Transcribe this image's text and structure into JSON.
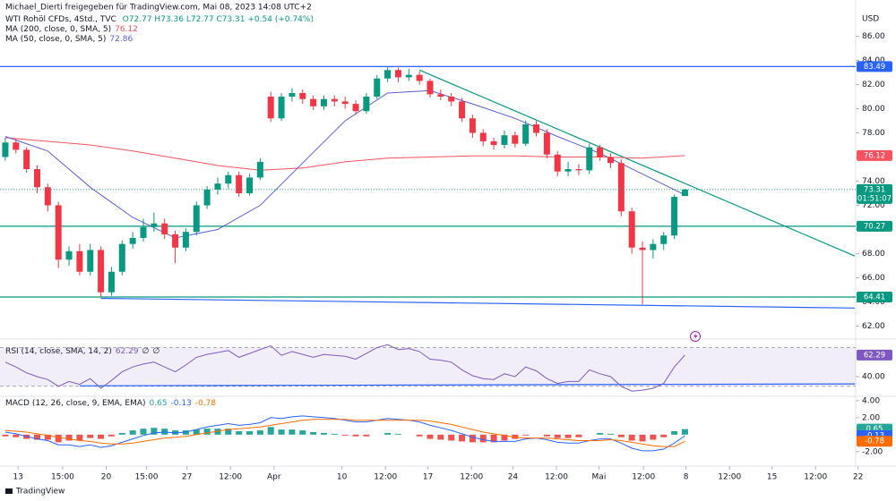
{
  "chart_data": [
    {
      "type": "candlestick",
      "shared_by": "Michael_Dierti freigegeben für TradingView.com, Mai 08, 2023 14:08 UTC+2",
      "title": "WTI Rohöl CFDs, 4Std., TVC",
      "ohlc_label": "O72.77 H73.36 L72.77 C73.31 +0.54 (+0.74%)",
      "currency": "USD",
      "countdown": "01:51:07",
      "brand": "TradingView",
      "up_color": "#089981",
      "down_color": "#f23645",
      "open": [
        76.0,
        77.2,
        76.6,
        75.0,
        73.5,
        72.0,
        67.5,
        68.2,
        66.5,
        68.3,
        64.8,
        66.5,
        68.8,
        69.3,
        70.2,
        70.5,
        69.6,
        68.5,
        69.8,
        72.0,
        73.3,
        73.8,
        74.5,
        73.0,
        74.3,
        81.0,
        79.2,
        81.0,
        81.3,
        80.8,
        80.2,
        80.8,
        80.6,
        80.4,
        79.8,
        81.0,
        82.5,
        83.2,
        82.6,
        82.8,
        82.3,
        81.2,
        81.0,
        80.6,
        79.2,
        78.0,
        77.3,
        77.0,
        77.8,
        77.1,
        78.7,
        78.0,
        76.2,
        74.8,
        75.0,
        74.9,
        76.8,
        76.0,
        75.5,
        71.5,
        68.5,
        68.3,
        68.8,
        69.5,
        72.77
      ],
      "high": [
        77.6,
        77.5,
        76.8,
        75.3,
        73.8,
        72.3,
        68.6,
        68.8,
        68.8,
        68.6,
        66.9,
        69.1,
        69.8,
        70.9,
        71.4,
        70.9,
        69.9,
        70.1,
        72.3,
        73.6,
        74.3,
        74.8,
        74.8,
        74.6,
        75.9,
        81.4,
        81.3,
        81.7,
        81.6,
        81.1,
        81.1,
        81.1,
        81.0,
        80.7,
        81.3,
        82.8,
        83.5,
        83.4,
        83.3,
        83.1,
        82.5,
        81.6,
        81.3,
        80.9,
        79.5,
        78.3,
        77.6,
        78.2,
        78.1,
        79.0,
        79.0,
        78.3,
        76.5,
        75.6,
        75.4,
        77.1,
        77.0,
        76.3,
        75.8,
        71.8,
        69.0,
        69.2,
        69.8,
        72.9,
        73.36
      ],
      "low": [
        75.7,
        76.3,
        74.7,
        73.0,
        71.5,
        66.8,
        67.0,
        66.2,
        66.2,
        64.4,
        64.5,
        66.2,
        68.4,
        69.0,
        69.8,
        69.2,
        67.2,
        68.2,
        69.5,
        71.7,
        72.9,
        73.4,
        72.7,
        72.8,
        74.1,
        78.9,
        79.0,
        80.6,
        80.4,
        79.9,
        79.9,
        80.2,
        80.0,
        79.5,
        79.6,
        80.8,
        82.2,
        82.2,
        82.3,
        82.0,
        80.9,
        80.7,
        80.2,
        78.9,
        77.6,
        76.9,
        76.6,
        76.7,
        76.8,
        76.9,
        77.7,
        75.9,
        74.4,
        74.4,
        74.5,
        74.6,
        75.7,
        75.1,
        71.1,
        68.0,
        63.8,
        67.6,
        68.3,
        69.2,
        72.77
      ],
      "close": [
        77.2,
        76.6,
        75.0,
        73.5,
        72.0,
        67.5,
        68.2,
        66.5,
        68.3,
        64.8,
        66.5,
        68.8,
        69.3,
        70.2,
        70.5,
        69.6,
        68.5,
        69.8,
        72.0,
        73.3,
        73.8,
        74.5,
        73.0,
        74.3,
        75.6,
        79.2,
        81.0,
        81.3,
        80.8,
        80.2,
        80.8,
        80.6,
        80.4,
        79.8,
        81.0,
        82.5,
        83.2,
        82.6,
        82.8,
        82.3,
        81.2,
        81.0,
        80.6,
        79.2,
        78.0,
        77.3,
        77.0,
        77.8,
        77.1,
        78.7,
        78.0,
        76.2,
        74.8,
        75.0,
        74.9,
        76.8,
        76.0,
        75.5,
        71.5,
        68.5,
        68.3,
        68.8,
        69.5,
        72.7,
        73.31
      ],
      "overlays": [
        {
          "name": "MA (200, close, 0, SMA, 5)",
          "color": "#f7525f",
          "x": [
            0,
            4,
            8,
            12,
            16,
            20,
            24,
            28,
            32,
            36,
            40,
            44,
            48,
            52,
            56,
            60,
            64
          ],
          "values": [
            77.6,
            77.3,
            77.0,
            76.5,
            75.9,
            75.3,
            74.9,
            75.1,
            75.6,
            75.9,
            76.0,
            76.1,
            76.1,
            76.0,
            76.0,
            75.9,
            76.12
          ]
        },
        {
          "name": "MA (50, close, 0, SMA, 5)",
          "color": "#5b5fd6",
          "x": [
            0,
            4,
            8,
            12,
            16,
            20,
            24,
            28,
            32,
            36,
            40,
            44,
            48,
            52,
            56,
            60,
            64
          ],
          "values": [
            77.7,
            76.5,
            73.5,
            71.0,
            69.3,
            70.0,
            72.0,
            75.5,
            79.0,
            81.3,
            81.5,
            80.4,
            79.2,
            77.7,
            76.3,
            74.6,
            72.86
          ]
        }
      ],
      "hlines": [
        {
          "value": 83.49,
          "color": "#2962ff"
        },
        {
          "value": 70.27,
          "color": "#089981"
        },
        {
          "value": 64.41,
          "color": "#089981"
        }
      ],
      "lines": [
        {
          "color": "#089981",
          "x": [
            39,
            80
          ],
          "y": [
            83.2,
            67.8
          ]
        },
        {
          "color": "#2962ff",
          "x": [
            9,
            80
          ],
          "y": [
            64.3,
            63.5
          ]
        }
      ],
      "xlim": [
        -0.5,
        80.5
      ],
      "xticks": [
        {
          "value": 1.2,
          "label": "13"
        },
        {
          "value": 5.4,
          "label": "15:00"
        },
        {
          "value": 9.5,
          "label": "20"
        },
        {
          "value": 13.3,
          "label": "15:00"
        },
        {
          "value": 17.1,
          "label": "27"
        },
        {
          "value": 21.2,
          "label": "12:00"
        },
        {
          "value": 25.3,
          "label": "Apr"
        },
        {
          "value": 31.7,
          "label": "10"
        },
        {
          "value": 35.8,
          "label": "12:00"
        },
        {
          "value": 39.8,
          "label": "17"
        },
        {
          "value": 43.9,
          "label": "12:00"
        },
        {
          "value": 47.8,
          "label": "24"
        },
        {
          "value": 51.9,
          "label": "12:00"
        },
        {
          "value": 55.9,
          "label": "Mai"
        },
        {
          "value": 60.1,
          "label": "12:00"
        },
        {
          "value": 64.1,
          "label": "8"
        },
        {
          "value": 68.2,
          "label": "12:00"
        },
        {
          "value": 72.2,
          "label": "15"
        },
        {
          "value": 76.3,
          "label": "12:00"
        },
        {
          "value": 80.3,
          "label": "22"
        }
      ],
      "ylim": [
        61,
        89
      ],
      "yticks": [
        {
          "value": 62,
          "label": "62.00"
        },
        {
          "value": 64,
          "label": "64.00"
        },
        {
          "value": 66,
          "label": "66.00"
        },
        {
          "value": 68,
          "label": "68.00"
        },
        {
          "value": 70,
          "label": "70.00"
        },
        {
          "value": 72,
          "label": "72.00"
        },
        {
          "value": 74,
          "label": "74.00"
        },
        {
          "value": 76,
          "label": "76.00"
        },
        {
          "value": 78,
          "label": "78.00"
        },
        {
          "value": 80,
          "label": "80.00"
        },
        {
          "value": 82,
          "label": "82.00"
        },
        {
          "value": 84,
          "label": "84.00"
        },
        {
          "value": 86,
          "label": "86.00"
        }
      ]
    },
    {
      "type": "line",
      "title": "RSI (14, close, SMA, 14, 2)",
      "na": [
        "∅",
        "∅"
      ],
      "color": "#7e57c2",
      "values": [
        55,
        50,
        44,
        40,
        37,
        30,
        35,
        32,
        38,
        28,
        36,
        45,
        50,
        53,
        55,
        50,
        45,
        52,
        60,
        63,
        65,
        67,
        60,
        64,
        68,
        72,
        62,
        66,
        63,
        60,
        63,
        62,
        61,
        58,
        64,
        70,
        73,
        68,
        69,
        66,
        58,
        57,
        55,
        47,
        41,
        38,
        37,
        43,
        40,
        50,
        46,
        38,
        33,
        35,
        35,
        47,
        43,
        40,
        30,
        25,
        26,
        28,
        33,
        50,
        62.29
      ],
      "bands": [
        30,
        70
      ],
      "lines": [
        {
          "color": "#2962ff",
          "x": [
            7,
            80
          ],
          "y": [
            30.5,
            32.5
          ]
        }
      ],
      "ylim": [
        21.5,
        77
      ],
      "yticks": [
        {
          "value": 40,
          "label": "40.00"
        }
      ]
    },
    {
      "type": "macd",
      "title": "MACD (12, 26, close, 9, EMA, EMA)",
      "hist_up_color": "#26a69a",
      "hist_down_color": "#ef5350",
      "histogram": [
        -0.2,
        -0.3,
        -0.5,
        -0.6,
        -0.6,
        -0.9,
        -0.7,
        -0.7,
        -0.4,
        -0.5,
        -0.2,
        0.2,
        0.5,
        0.7,
        0.8,
        0.7,
        0.5,
        0.5,
        0.6,
        0.7,
        0.7,
        0.7,
        0.4,
        0.4,
        0.5,
        0.9,
        0.6,
        0.6,
        0.5,
        0.3,
        0.2,
        0.1,
        -0.1,
        -0.2,
        -0.2,
        0,
        0.2,
        0.1,
        0,
        -0.2,
        -0.5,
        -0.6,
        -0.7,
        -0.8,
        -0.9,
        -0.9,
        -0.9,
        -0.7,
        -0.5,
        -0.1,
        0,
        -0.2,
        -0.4,
        -0.4,
        -0.3,
        0,
        0.2,
        0.1,
        -0.3,
        -0.7,
        -0.8,
        -0.6,
        -0.3,
        0.4,
        0.65
      ],
      "macd": {
        "color": "#2962ff",
        "values": [
          0.3,
          0.1,
          -0.2,
          -0.5,
          -0.7,
          -1.2,
          -1.2,
          -1.4,
          -1.2,
          -1.5,
          -1.3,
          -0.9,
          -0.5,
          -0.1,
          0.2,
          0.3,
          0.2,
          0.3,
          0.6,
          0.9,
          1.1,
          1.3,
          1.1,
          1.2,
          1.4,
          2.0,
          1.9,
          2.1,
          2.2,
          2.1,
          2.0,
          1.9,
          1.7,
          1.5,
          1.5,
          1.7,
          1.9,
          1.8,
          1.7,
          1.5,
          1.1,
          0.8,
          0.5,
          0.1,
          -0.3,
          -0.6,
          -0.8,
          -0.8,
          -0.8,
          -0.5,
          -0.4,
          -0.6,
          -0.9,
          -1.0,
          -1.0,
          -0.7,
          -0.5,
          -0.5,
          -1.0,
          -1.6,
          -1.9,
          -1.9,
          -1.7,
          -1.0,
          -0.13
        ]
      },
      "signal": {
        "color": "#ff6d00",
        "values": [
          0.5,
          0.4,
          0.3,
          0.1,
          -0.1,
          -0.3,
          -0.5,
          -0.7,
          -0.8,
          -1.0,
          -1.1,
          -1.1,
          -1.0,
          -0.8,
          -0.6,
          -0.4,
          -0.3,
          -0.2,
          0.0,
          0.2,
          0.4,
          0.6,
          0.7,
          0.8,
          0.9,
          1.1,
          1.3,
          1.5,
          1.7,
          1.8,
          1.8,
          1.8,
          1.8,
          1.7,
          1.7,
          1.7,
          1.7,
          1.7,
          1.7,
          1.7,
          1.6,
          1.4,
          1.2,
          0.9,
          0.6,
          0.3,
          0.1,
          -0.1,
          -0.3,
          -0.4,
          -0.4,
          -0.4,
          -0.5,
          -0.6,
          -0.7,
          -0.7,
          -0.7,
          -0.6,
          -0.7,
          -0.9,
          -1.1,
          -1.3,
          -1.4,
          -1.4,
          -0.78
        ]
      },
      "ylim": [
        -3.6,
        4.3
      ],
      "yticks": [
        {
          "value": 4,
          "label": "4.00"
        },
        {
          "value": 2,
          "label": "2.00"
        },
        {
          "value": -2,
          "label": "-2.00"
        }
      ]
    }
  ]
}
